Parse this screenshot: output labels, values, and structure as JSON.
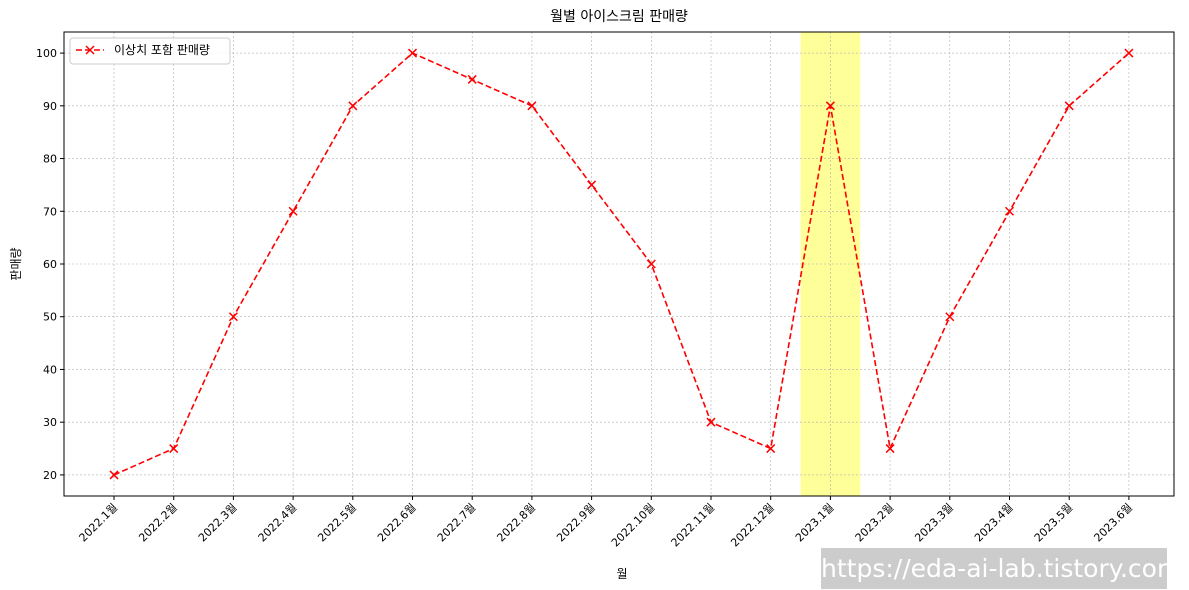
{
  "chart_data": {
    "type": "line",
    "title": "월별 아이스크림 판매량",
    "xlabel": "월",
    "ylabel": "판매량",
    "categories": [
      "2022.1월",
      "2022.2월",
      "2022.3월",
      "2022.4월",
      "2022.5월",
      "2022.6월",
      "2022.7월",
      "2022.8월",
      "2022.9월",
      "2022.10월",
      "2022.11월",
      "2022.12월",
      "2023.1월",
      "2023.2월",
      "2023.3월",
      "2023.4월",
      "2023.5월",
      "2023.6월"
    ],
    "series": [
      {
        "name": "이상치 포함 판매량",
        "values": [
          20,
          25,
          50,
          70,
          90,
          100,
          95,
          90,
          75,
          60,
          30,
          25,
          90,
          25,
          50,
          70,
          90,
          100
        ],
        "color": "#ff0000",
        "line_style": "dashed",
        "marker": "x"
      }
    ],
    "ylim": [
      16.0,
      104.0
    ],
    "yticks": [
      20,
      30,
      40,
      50,
      60,
      70,
      80,
      90,
      100
    ],
    "highlight": {
      "category": "2023.1월",
      "color": "#ffff99"
    },
    "grid": true,
    "legend_position": "top-left"
  },
  "watermark": {
    "text": "https://eda-ai-lab.tistory.com"
  }
}
